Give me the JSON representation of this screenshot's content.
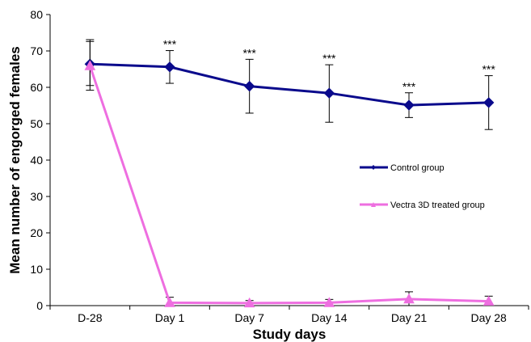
{
  "chart_data": {
    "type": "line",
    "title": "",
    "xlabel": "Study days",
    "ylabel": "Mean number of engorged females",
    "ylim": [
      0,
      80
    ],
    "yticks": [
      0,
      10,
      20,
      30,
      40,
      50,
      60,
      70,
      80
    ],
    "categories": [
      "D-28",
      "Day 1",
      "Day 7",
      "Day 14",
      "Day 21",
      "Day 28"
    ],
    "grid": false,
    "legend_position": "right",
    "series": [
      {
        "name": "Control group",
        "color": "#0a0a8c",
        "marker": "diamond",
        "values": [
          66.4,
          65.6,
          60.3,
          58.4,
          55.1,
          55.8
        ],
        "error_low": [
          59.2,
          61.1,
          52.9,
          50.4,
          51.7,
          48.4
        ],
        "error_high": [
          73.1,
          70.1,
          67.7,
          66.2,
          58.5,
          63.2
        ],
        "annotations": [
          "",
          "***",
          "***",
          "***",
          "***",
          "***"
        ]
      },
      {
        "name": "Vectra 3D treated group",
        "color": "#ee6ee0",
        "marker": "triangle",
        "values": [
          65.9,
          0.8,
          0.7,
          0.8,
          1.8,
          1.2
        ],
        "error_low": [
          60.5,
          0,
          0,
          0,
          0,
          0
        ],
        "error_high": [
          72.6,
          2.3,
          1.4,
          1.7,
          3.8,
          2.6
        ],
        "annotations": [
          "",
          "",
          "",
          "",
          "",
          ""
        ]
      }
    ]
  }
}
